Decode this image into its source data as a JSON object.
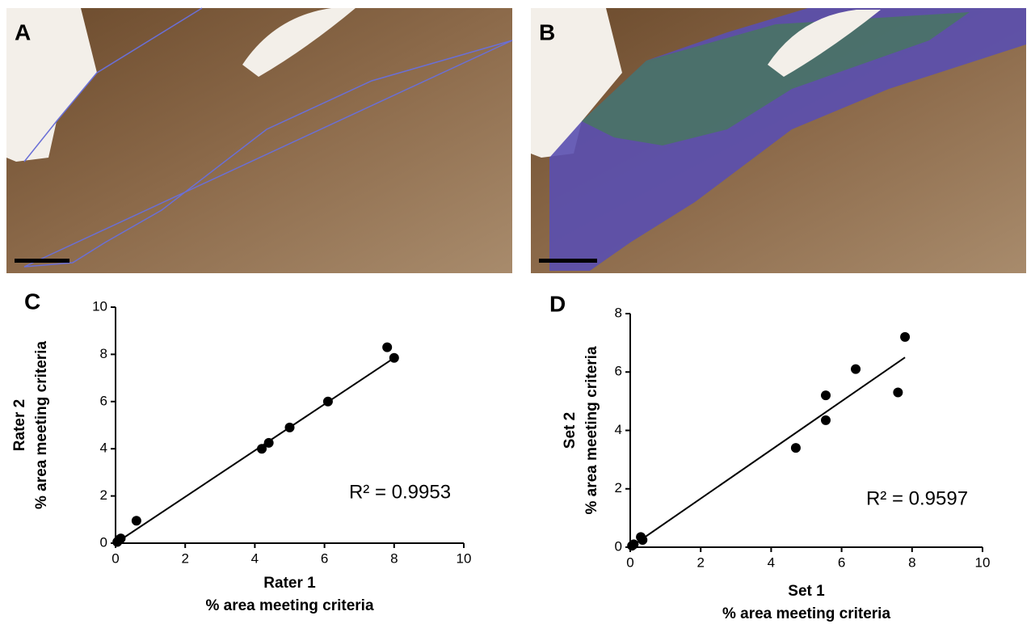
{
  "images": [
    {
      "label": "A"
    },
    {
      "label": "B"
    }
  ],
  "chart_data": [
    {
      "type": "scatter",
      "panel_label": "C",
      "x": [
        0.05,
        0.1,
        0.15,
        0.6,
        4.2,
        4.4,
        5.0,
        6.1,
        7.8,
        8.0
      ],
      "y": [
        0.05,
        0.15,
        0.2,
        0.95,
        4.0,
        4.25,
        4.9,
        6.0,
        8.3,
        7.85
      ],
      "fit_line": {
        "x": [
          0,
          8
        ],
        "y": [
          0,
          7.85
        ]
      },
      "xlim": [
        0,
        10
      ],
      "xticks": [
        0,
        2,
        4,
        6,
        8,
        10
      ],
      "ylim": [
        0,
        10
      ],
      "yticks": [
        0,
        2,
        4,
        6,
        8,
        10
      ],
      "xlabel": [
        "Rater 1",
        "% area meeting criteria"
      ],
      "ylabel": [
        "Rater 2",
        "% area meeting criteria"
      ],
      "annotation": "R² = 0.9953",
      "color": "#000000"
    },
    {
      "type": "scatter",
      "panel_label": "D",
      "x": [
        0.05,
        0.1,
        0.3,
        0.35,
        4.7,
        5.55,
        5.55,
        6.4,
        7.6,
        7.8
      ],
      "y": [
        0.05,
        0.1,
        0.35,
        0.25,
        3.4,
        5.2,
        4.35,
        6.1,
        5.3,
        7.2
      ],
      "fit_line": {
        "x": [
          0,
          7.8
        ],
        "y": [
          0,
          6.5
        ]
      },
      "xlim": [
        0,
        10
      ],
      "xticks": [
        0,
        2,
        4,
        6,
        8,
        10
      ],
      "ylim": [
        0,
        8
      ],
      "yticks": [
        0,
        2,
        4,
        6,
        8
      ],
      "xlabel": [
        "Set 1",
        "% area meeting criteria"
      ],
      "ylabel": [
        "Set 2",
        "% area meeting criteria"
      ],
      "annotation": "R² = 0.9597",
      "color": "#000000"
    }
  ]
}
